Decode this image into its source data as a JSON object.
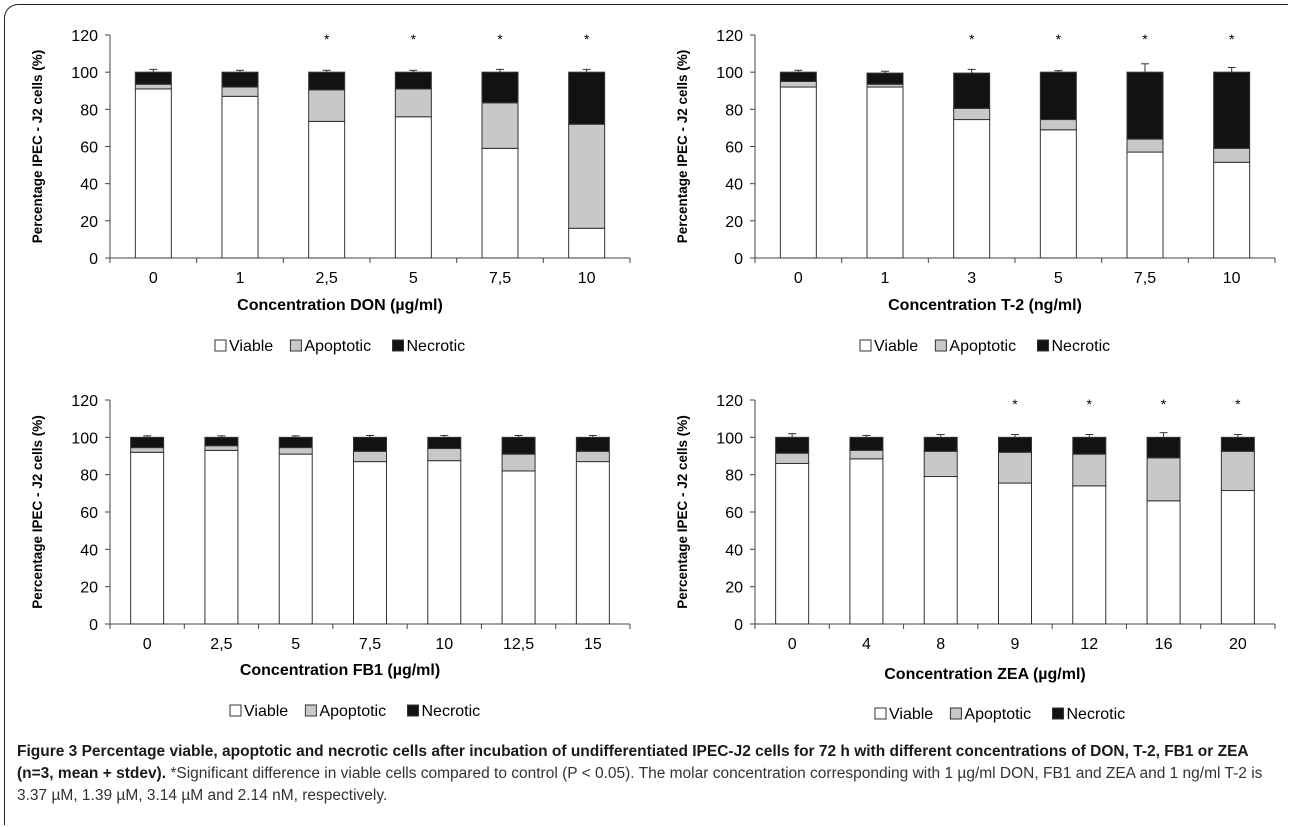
{
  "chart_data": [
    {
      "type": "bar",
      "stacked": true,
      "categories": [
        "0",
        "1",
        "2,5",
        "5",
        "7,5",
        "10"
      ],
      "xlabel": "Concentration DON (µg/ml)",
      "ylabel": "Percentage IPEC - J2 cells (%)",
      "ylim": [
        0,
        120
      ],
      "yticks": [
        "0",
        "20",
        "40",
        "60",
        "80",
        "100",
        "120"
      ],
      "significance": [
        "",
        "",
        "*",
        "*",
        "*",
        "*"
      ],
      "series": [
        {
          "name": "Viable",
          "values": [
            91,
            87,
            73.5,
            76,
            59,
            16
          ],
          "errors": [
            1.5,
            2,
            0.8,
            1.5,
            4.5,
            3
          ]
        },
        {
          "name": "Apoptotic",
          "values": [
            2.5,
            5,
            17,
            15,
            24.5,
            56
          ],
          "errors": [
            1.5,
            1.5,
            1.5,
            1.5,
            2,
            1.5
          ]
        },
        {
          "name": "Necrotic",
          "values": [
            6.5,
            8,
            9.5,
            9,
            16.5,
            28
          ],
          "errors": [
            1.5,
            1,
            1,
            1,
            1.5,
            1.5
          ]
        }
      ],
      "legend": "bottom"
    },
    {
      "type": "bar",
      "stacked": true,
      "categories": [
        "0",
        "1",
        "3",
        "5",
        "7,5",
        "10"
      ],
      "xlabel": "Concentration T-2 (ng/ml)",
      "ylabel": "Percentage IPEC - J2 cells (%)",
      "ylim": [
        0,
        120
      ],
      "yticks": [
        "0",
        "20",
        "40",
        "60",
        "80",
        "100",
        "120"
      ],
      "significance": [
        "",
        "",
        "*",
        "*",
        "*",
        "*"
      ],
      "series": [
        {
          "name": "Viable",
          "values": [
            92,
            92,
            74.5,
            69,
            57,
            51.5
          ],
          "errors": [
            1.5,
            1,
            3,
            1,
            5.5,
            1.5
          ]
        },
        {
          "name": "Apoptotic",
          "values": [
            3,
            1.5,
            6,
            5.5,
            7,
            7.5
          ],
          "errors": [
            1,
            0.8,
            1.5,
            1,
            1.5,
            1.5
          ]
        },
        {
          "name": "Necrotic",
          "values": [
            5,
            6,
            19,
            25.5,
            36,
            41
          ],
          "errors": [
            1,
            1,
            2,
            0.8,
            4.5,
            2.5
          ]
        }
      ],
      "legend": "bottom"
    },
    {
      "type": "bar",
      "stacked": true,
      "categories": [
        "0",
        "2,5",
        "5",
        "7,5",
        "10",
        "12,5",
        "15"
      ],
      "xlabel": "Concentration FB1 (µg/ml)",
      "ylabel": "Percentage IPEC - J2 cells (%)",
      "ylim": [
        0,
        120
      ],
      "yticks": [
        "0",
        "20",
        "40",
        "60",
        "80",
        "100",
        "120"
      ],
      "significance": [
        "",
        "",
        "",
        "",
        "",
        "",
        ""
      ],
      "series": [
        {
          "name": "Viable",
          "values": [
            92,
            93,
            91,
            87,
            87.5,
            82,
            87
          ],
          "errors": [
            1,
            1,
            1,
            1.5,
            1.5,
            1.5,
            1.5
          ]
        },
        {
          "name": "Apoptotic",
          "values": [
            2.5,
            2.5,
            3.5,
            5.5,
            6.5,
            9,
            5.5
          ],
          "errors": [
            1,
            1,
            1,
            1,
            1.5,
            1.5,
            1.5
          ]
        },
        {
          "name": "Necrotic",
          "values": [
            5.5,
            4.5,
            5.5,
            7.5,
            6,
            9,
            7.5
          ],
          "errors": [
            0.8,
            0.8,
            0.8,
            1,
            1,
            1,
            1
          ]
        }
      ],
      "legend": "bottom"
    },
    {
      "type": "bar",
      "stacked": true,
      "categories": [
        "0",
        "4",
        "8",
        "9",
        "12",
        "16",
        "20"
      ],
      "xlabel": "Concentration ZEA (µg/ml)",
      "ylabel": "Percentage IPEC - J2 cells (%)",
      "ylim": [
        0,
        120
      ],
      "yticks": [
        "0",
        "20",
        "40",
        "60",
        "80",
        "100",
        "120"
      ],
      "significance": [
        "",
        "",
        "",
        "*",
        "*",
        "*",
        "*"
      ],
      "series": [
        {
          "name": "Viable",
          "values": [
            86,
            88.5,
            79,
            75.5,
            74,
            66,
            71.5
          ],
          "errors": [
            5,
            1.5,
            4,
            3,
            1,
            0.5,
            2.5
          ]
        },
        {
          "name": "Apoptotic",
          "values": [
            5.5,
            4.5,
            13.5,
            16.5,
            17,
            23,
            21
          ],
          "errors": [
            4,
            1,
            5,
            1.5,
            2,
            2.5,
            2
          ]
        },
        {
          "name": "Necrotic",
          "values": [
            8.5,
            7,
            7.5,
            8,
            9,
            11,
            7.5
          ],
          "errors": [
            2,
            1,
            1.5,
            1.5,
            1.5,
            2.5,
            1.5
          ]
        }
      ],
      "legend": "bottom"
    }
  ],
  "colors": {
    "Viable": "#ffffff",
    "Apoptotic": "#c8c8c8",
    "Necrotic": "#121212"
  },
  "caption": {
    "bold": "Figure 3 Percentage viable, apoptotic and necrotic cells after incubation of undifferentiated IPEC-J2 cells for 72 h with different concentrations of DON, T-2, FB1 or ZEA (n=3, mean + stdev).",
    "text": " *Significant difference in viable cells compared to control (P < 0.05). The molar concentration corresponding with 1 µg/ml DON, FB1 and ZEA and 1 ng/ml T-2 is 3.37 µM, 1.39 µM, 3.14 µM and 2.14 nM, respectively."
  }
}
